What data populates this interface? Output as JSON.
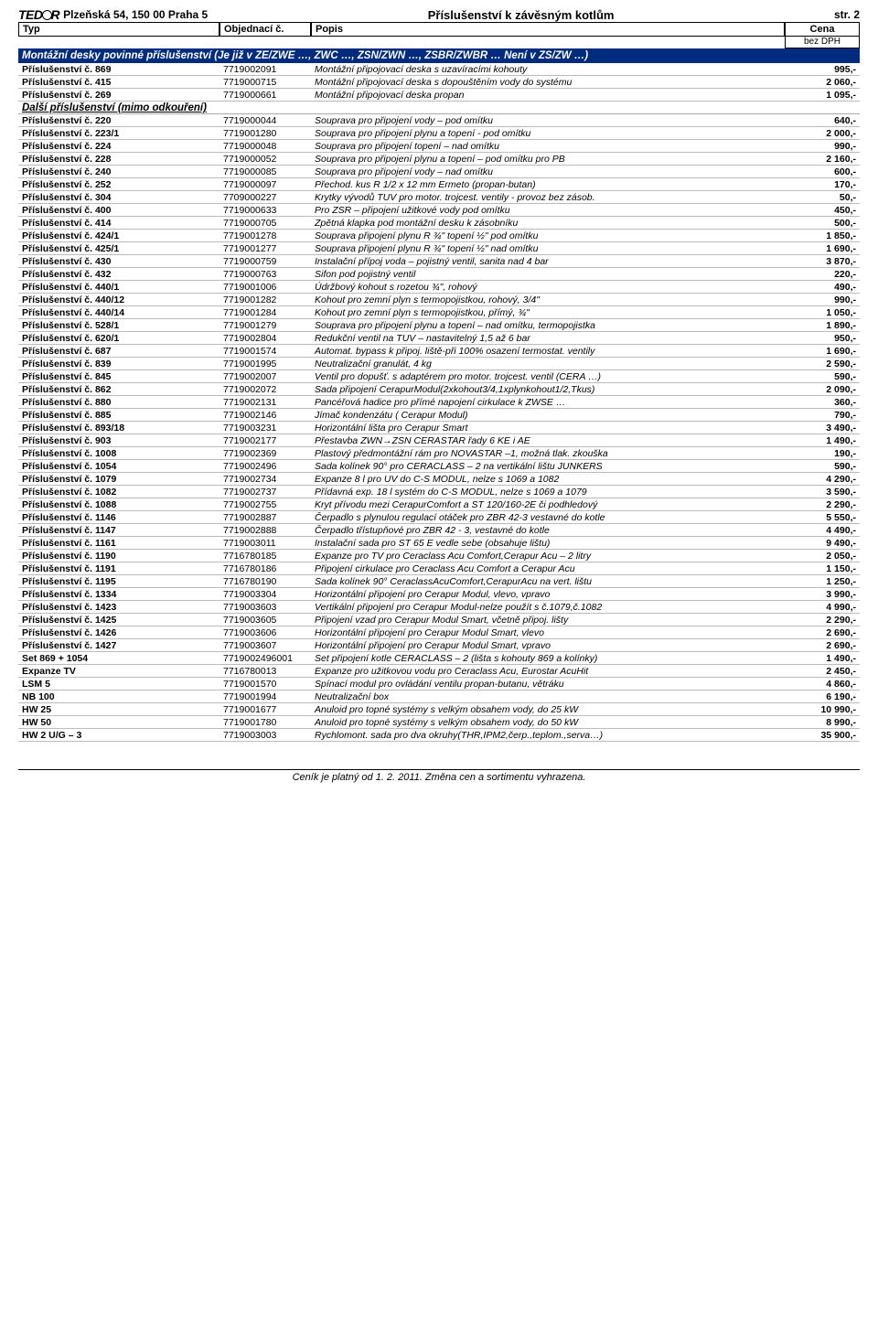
{
  "header": {
    "logo_pre": "TED",
    "logo_post": "R",
    "address": "Plzeňská 54, 150 00 Praha 5",
    "title": "Příslušenství k závěsným kotlům",
    "page": "str. 2"
  },
  "columns": {
    "typ": "Typ",
    "obj": "Objednací č.",
    "popis": "Popis",
    "cena": "Cena",
    "bez_dph": "bez DPH"
  },
  "section1": "Montážní desky povinné příslušenství (Je již v ZE/ZWE …, ZWC …, ZSN/ZWN …, ZSBR/ZWBR … Není v ZS/ZW …)",
  "rows1": [
    {
      "typ": "Příslušenství č. 869",
      "obj": "7719002091",
      "pop": "Montážní připojovací deska s uzavíracími kohouty",
      "cena": "995,-"
    },
    {
      "typ": "Příslušenství č. 415",
      "obj": "7719000715",
      "pop": "Montážní připojovací deska s dopouštěním vody do systému",
      "cena": "2 060,-"
    },
    {
      "typ": "Příslušenství č. 269",
      "obj": "7719000661",
      "pop": "Montážní připojovací deska propan",
      "cena": "1 095,-"
    }
  ],
  "section2": "Další příslušenství (mimo odkouření)",
  "rows2": [
    {
      "typ": "Příslušenství č. 220",
      "obj": "7719000044",
      "pop": "Souprava pro připojení vody – pod omítku",
      "cena": "640,-"
    },
    {
      "typ": "Příslušenství č. 223/1",
      "obj": "7719001280",
      "pop": "Souprava pro připojení plynu a topení - pod omítku",
      "cena": "2 000,-"
    },
    {
      "typ": "Příslušenství č. 224",
      "obj": "7719000048",
      "pop": "Souprava pro připojení topení – nad omítku",
      "cena": "990,-"
    },
    {
      "typ": "Příslušenství č. 228",
      "obj": "7719000052",
      "pop": "Souprava pro připojení plynu a topení – pod omítku pro PB",
      "cena": "2 160,-"
    },
    {
      "typ": "Příslušenství č. 240",
      "obj": "7719000085",
      "pop": "Souprava pro připojení vody – nad omítku",
      "cena": "600,-"
    },
    {
      "typ": "Příslušenství č. 252",
      "obj": "7719000097",
      "pop": "Přechod. kus R 1/2 x 12 mm Ermeto (propan-butan)",
      "cena": "170,-"
    },
    {
      "typ": "Příslušenství č. 304",
      "obj": "7709000227",
      "pop": "Krytky vývodů TUV pro motor. trojcest. ventily - provoz bez zásob.",
      "cena": "50,-"
    },
    {
      "typ": "Příslušenství č. 400",
      "obj": "7719000633",
      "pop": "Pro ZSR – připojení užitkové vody pod omítku",
      "cena": "450,-"
    },
    {
      "typ": "Příslušenství č. 414",
      "obj": "7719000705",
      "pop": "Zpětná klapka pod montážní desku k zásobníku",
      "cena": "500,-"
    },
    {
      "typ": "Příslušenství č. 424/1",
      "obj": "7719001278",
      "pop": "Souprava připojení plynu R ¾\" topení ½\" pod omítku",
      "cena": "1 850,-"
    },
    {
      "typ": "Příslušenství č. 425/1",
      "obj": "7719001277",
      "pop": "Souprava připojení plynu R ¾\" topení ½\" nad omítku",
      "cena": "1 690,-"
    },
    {
      "typ": "Příslušenství č. 430",
      "obj": "7719000759",
      "pop": "Instalační přípoj voda – pojistný ventil, sanita nad 4 bar",
      "cena": "3 870,-"
    },
    {
      "typ": "Příslušenství č. 432",
      "obj": "7719000763",
      "pop": "Sifon pod pojistný ventil",
      "cena": "220,-"
    },
    {
      "typ": "Příslušenství č. 440/1",
      "obj": "7719001006",
      "pop": "Údržbový kohout s rozetou ¾\", rohový",
      "cena": "490,-"
    },
    {
      "typ": "Příslušenství č. 440/12",
      "obj": "7719001282",
      "pop": "Kohout pro zemní plyn s termopojistkou, rohový, 3/4\"",
      "cena": "990,-"
    },
    {
      "typ": "Příslušenství č. 440/14",
      "obj": "7719001284",
      "pop": "Kohout pro zemní plyn s termopojistkou, přímý, ¾\"",
      "cena": "1 050,-"
    },
    {
      "typ": "Příslušenství č. 528/1",
      "obj": "7719001279",
      "pop": "Souprava pro připojení plynu a topení – nad omítku, termopojistka",
      "cena": "1 890,-"
    },
    {
      "typ": "Příslušenství č. 620/1",
      "obj": "7719002804",
      "pop": "Redukční ventil na TUV – nastavitelný 1,5 až 6 bar",
      "cena": "950,-"
    },
    {
      "typ": "Příslušenství č. 687",
      "obj": "7719001574",
      "pop": "Automat. bypass k připoj. liště-při 100% osazení termostat. ventily",
      "cena": "1 690,-"
    },
    {
      "typ": "Příslušenství č. 839",
      "obj": "7719001995",
      "pop": "Neutralizační granulát, 4 kg",
      "cena": "2 590,-"
    },
    {
      "typ": "Příslušenství č. 845",
      "obj": "7719002007",
      "pop": "Ventil pro dopušť. s adaptérem pro motor. trojcest. ventil (CERA …)",
      "cena": "590,-"
    },
    {
      "typ": "Příslušenství č. 862",
      "obj": "7719002072",
      "pop": "Sada připojení CerapurModul(2xkohout3/4,1xplynkohout1/2,Tkus)",
      "cena": "2 090,-"
    },
    {
      "typ": "Příslušenství č. 880",
      "obj": "7719002131",
      "pop": "Pancéřová hadice pro přímé napojení cirkulace k ZWSE …",
      "cena": "360,-"
    },
    {
      "typ": "Příslušenství č. 885",
      "obj": "7719002146",
      "pop": "Jímač kondenzátu ( Cerapur Modul)",
      "cena": "790,-"
    },
    {
      "typ": "Příslušenství č. 893/18",
      "obj": "7719003231",
      "pop": "Horizontální lišta pro Cerapur Smart",
      "cena": "3 490,-"
    },
    {
      "typ": "Příslušenství č. 903",
      "obj": "7719002177",
      "pop": "Přestavba ZWN→ZSN CERASTAR řady 6 KE i AE",
      "cena": "1 490,-"
    },
    {
      "typ": "Příslušenství č. 1008",
      "obj": "7719002369",
      "pop": "Plastový předmontážní rám pro NOVASTAR –1, možná tlak. zkouška",
      "cena": "190,-"
    },
    {
      "typ": "Příslušenství č. 1054",
      "obj": "7719002496",
      "pop": "Sada kolínek 90° pro CERACLASS – 2 na vertikální lištu JUNKERS",
      "cena": "590,-"
    },
    {
      "typ": "Příslušenství č. 1079",
      "obj": "7719002734",
      "pop": "Expanze 8 l pro UV do C-S MODUL, nelze s 1069 a 1082",
      "cena": "4 290,-"
    },
    {
      "typ": "Příslušenství č. 1082",
      "obj": "7719002737",
      "pop": "Přídavná exp. 18 l systém do C-S MODUL, nelze s 1069 a 1079",
      "cena": "3 590,-"
    },
    {
      "typ": "Příslušenství č. 1088",
      "obj": "7719002755",
      "pop": "Kryt přívodu mezi CerapurComfort a ST 120/160-2E či podhledový",
      "cena": "2 290,-"
    },
    {
      "typ": "Příslušenství č. 1146",
      "obj": "7719002887",
      "pop": "Čerpadlo s plynulou regulací otáček pro ZBR 42-3 vestavné do kotle",
      "cena": "5 550,-"
    },
    {
      "typ": "Příslušenství č. 1147",
      "obj": "7719002888",
      "pop": "Čerpadlo třístupňové pro ZBR 42 - 3, vestavné do kotle",
      "cena": "4 490,-"
    },
    {
      "typ": "Příslušenství č. 1161",
      "obj": "7719003011",
      "pop": "Instalační sada pro ST 65 E vedle sebe (obsahuje lištu)",
      "cena": "9 490,-"
    },
    {
      "typ": "Příslušenství č. 1190",
      "obj": "7716780185",
      "pop": "Expanze pro TV pro Ceraclass Acu Comfort,Cerapur Acu – 2 litry",
      "cena": "2 050,-"
    },
    {
      "typ": "Příslušenství č. 1191",
      "obj": "7716780186",
      "pop": "Připojení cirkulace pro Ceraclass Acu Comfort a Cerapur Acu",
      "cena": "1 150,-"
    },
    {
      "typ": "Příslušenství č. 1195",
      "obj": "7716780190",
      "pop": "Sada kolínek 90° CeraclassAcuComfort,CerapurAcu na vert. lištu",
      "cena": "1 250,-"
    },
    {
      "typ": "Příslušenství č. 1334",
      "obj": "7719003304",
      "pop": "Horizontální připojení pro Cerapur Modul, vlevo, vpravo",
      "cena": "3 990,-"
    },
    {
      "typ": "Příslušenství č. 1423",
      "obj": "7719003603",
      "pop": "Vertikální připojení pro Cerapur Modul-nelze použít s č.1079,č.1082",
      "cena": "4 990,-"
    },
    {
      "typ": "Příslušenství č. 1425",
      "obj": "7719003605",
      "pop": "Připojení vzad pro Cerapur Modul Smart, včetně připoj. lišty",
      "cena": "2 290,-"
    },
    {
      "typ": "Příslušenství č. 1426",
      "obj": "7719003606",
      "pop": "Horizontální připojení pro Cerapur Modul Smart, vlevo",
      "cena": "2 690,-"
    },
    {
      "typ": "Příslušenství č. 1427",
      "obj": "7719003607",
      "pop": "Horizontální připojení pro Cerapur Modul Smart, vpravo",
      "cena": "2 690,-"
    },
    {
      "typ": "Set 869 + 1054",
      "obj": "7719002496001",
      "pop": "Set připojení kotle CERACLASS – 2 (lišta s kohouty 869 a kolínky)",
      "cena": "1 490,-"
    },
    {
      "typ": "Expanze TV",
      "obj": "7716780013",
      "pop": "Expanze pro užitkovou vodu pro Ceraclass Acu, Eurostar AcuHit",
      "cena": "2 450,-"
    },
    {
      "typ": "LSM 5",
      "obj": "7719001570",
      "pop": "Spínací modul pro ovládání ventilu propan-butanu, větráku",
      "cena": "4 860,-"
    },
    {
      "typ": "NB 100",
      "obj": "7719001994",
      "pop": "Neutralizační box",
      "cena": "6 190,-"
    },
    {
      "typ": "HW 25",
      "obj": "7719001677",
      "pop": "Anuloid pro topné systémy s velkým obsahem vody, do 25 kW",
      "cena": "10 990,-"
    },
    {
      "typ": "HW 50",
      "obj": "7719001780",
      "pop": "Anuloid pro topné systémy s velkým obsahem vody, do 50 kW",
      "cena": "8 990,-"
    },
    {
      "typ": "HW 2 U/G – 3",
      "obj": "7719003003",
      "pop": "Rychlomont. sada pro dva okruhy(THR,IPM2,čerp.,teplom.,serva…)",
      "cena": "35 900,-"
    }
  ],
  "footer": "Ceník je platný od 1. 2. 2011. Změna cen a sortimentu vyhrazena."
}
